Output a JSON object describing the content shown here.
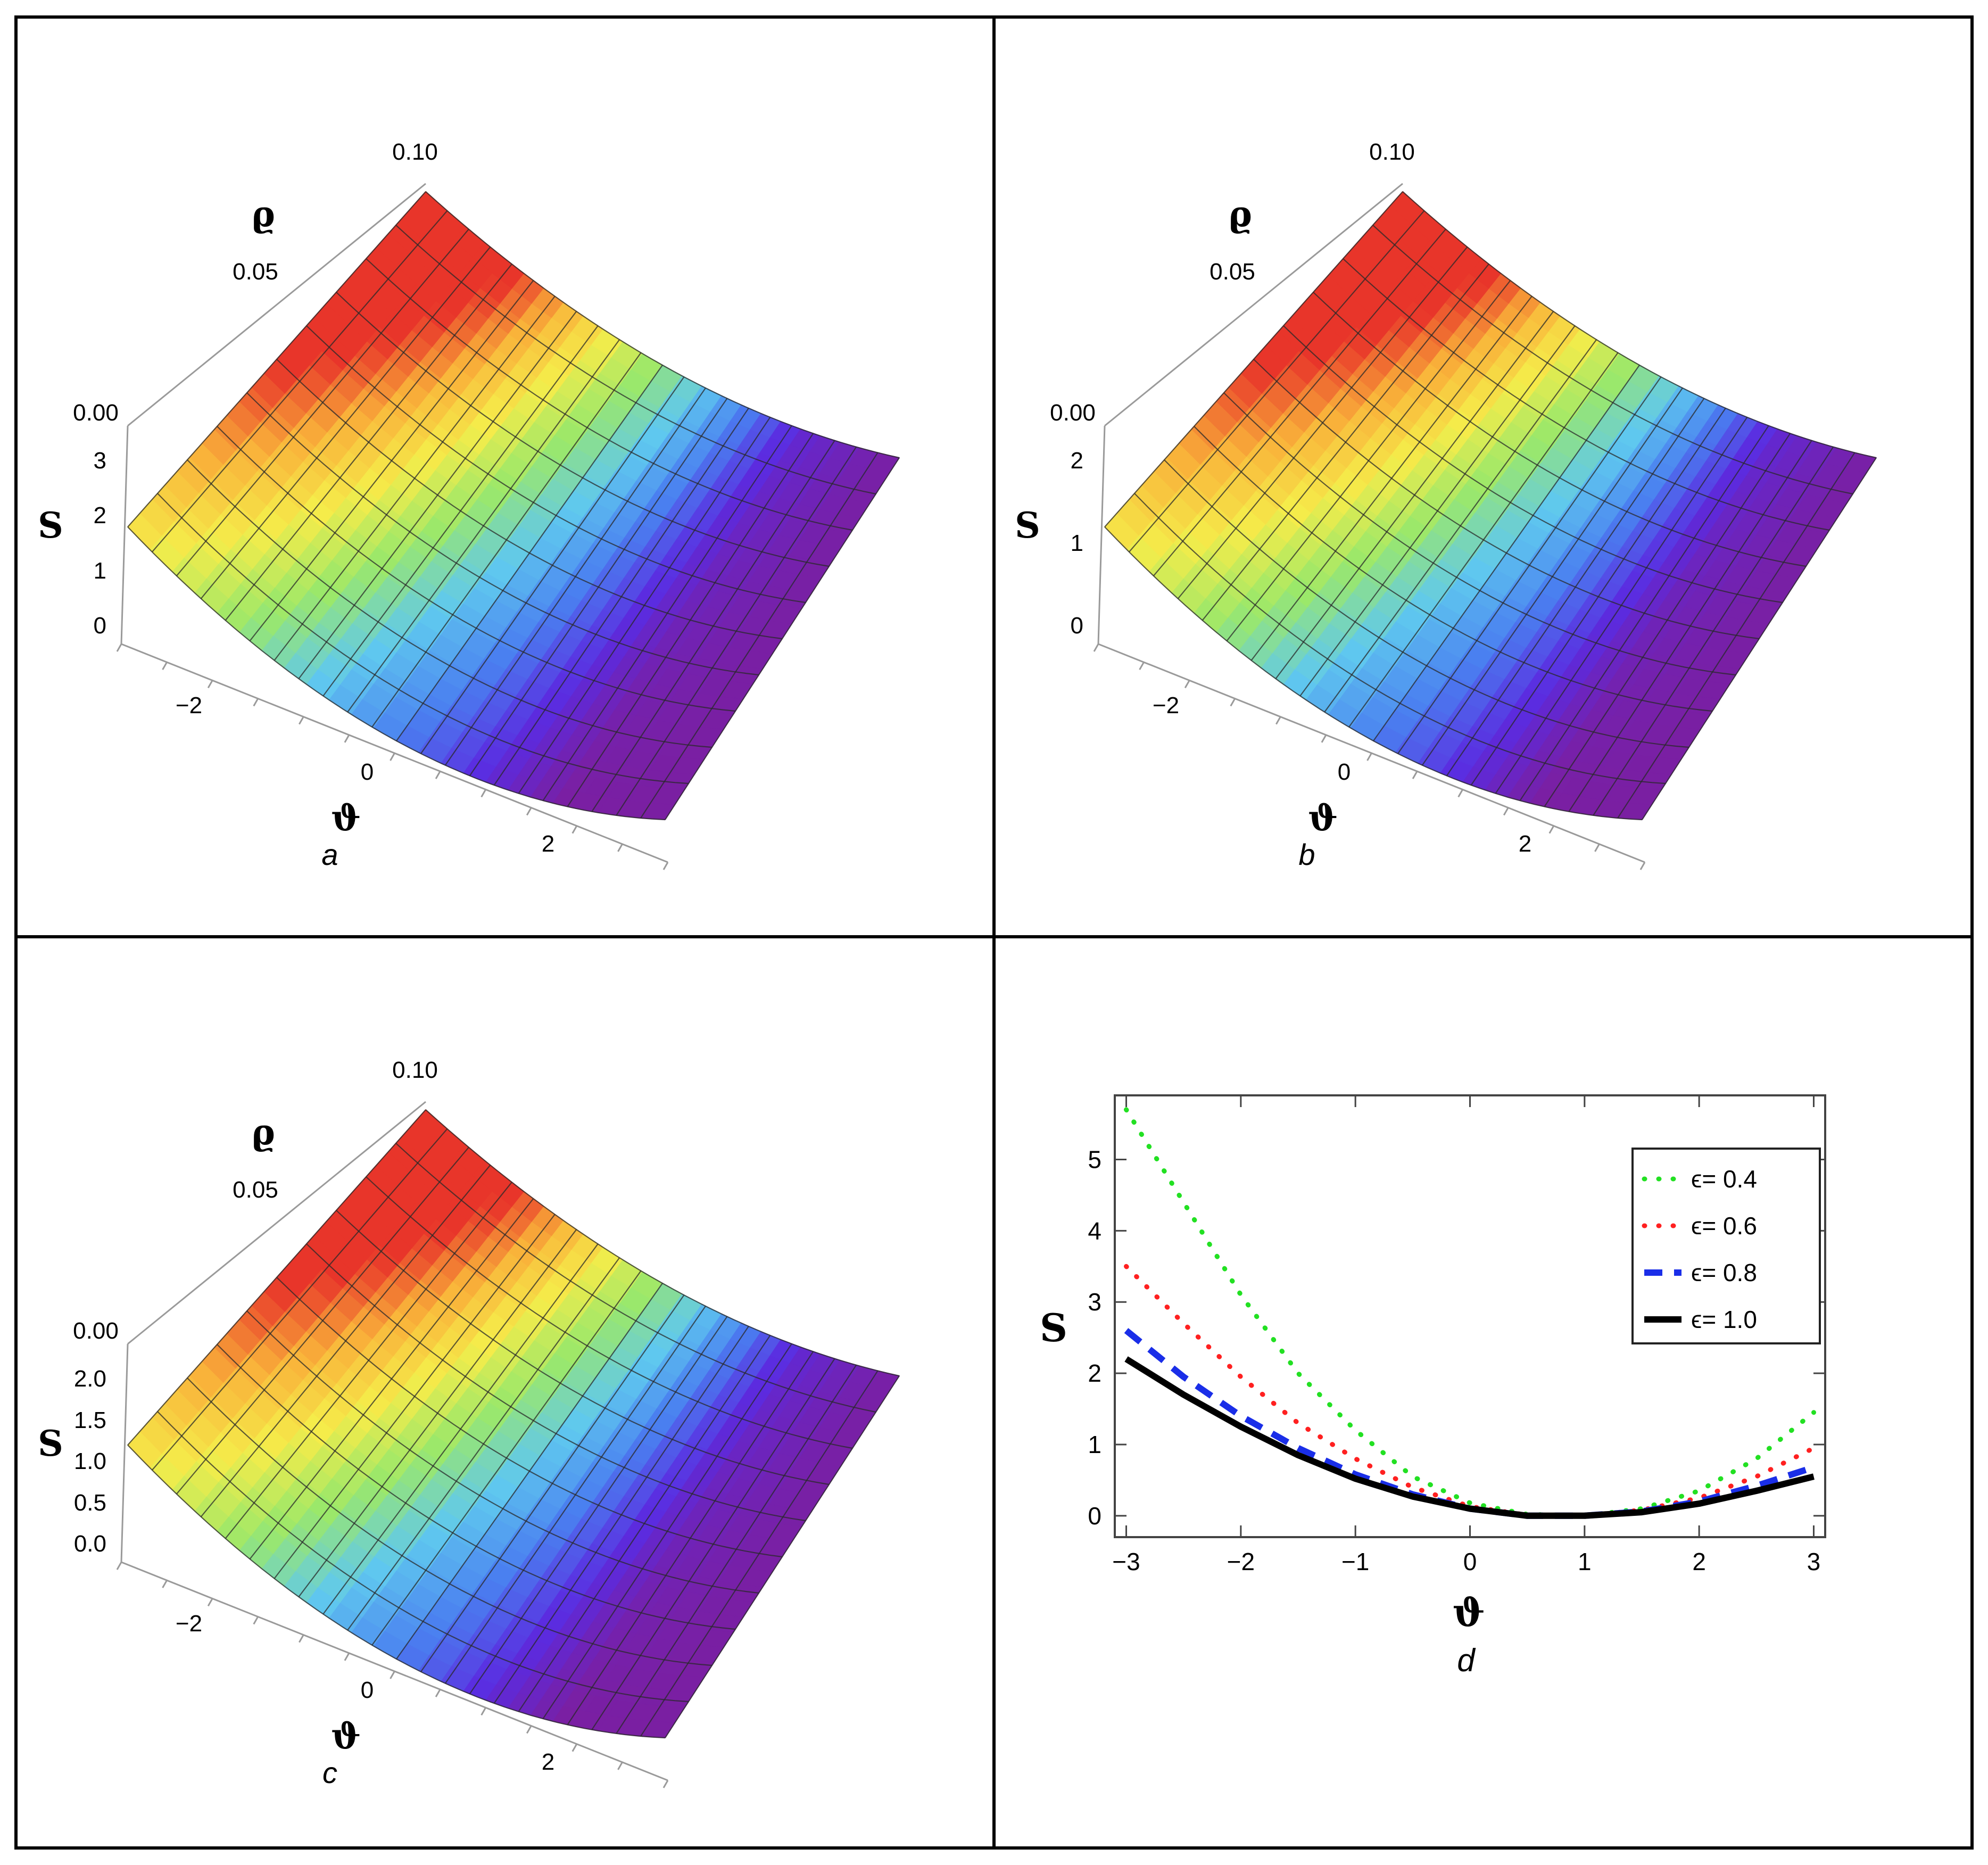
{
  "panels": [
    {
      "id": "a",
      "caption": "a",
      "z_label": "S",
      "x_label": "ϑ",
      "y_label": "ϱ",
      "z_ticks": [
        "0",
        "1",
        "2",
        "3"
      ],
      "x_ticks": [
        "−2",
        "0",
        "2"
      ],
      "y_ticks": [
        "0.00",
        "0.05",
        "0.10"
      ]
    },
    {
      "id": "b",
      "caption": "b",
      "z_label": "S",
      "x_label": "ϑ",
      "y_label": "ϱ",
      "z_ticks": [
        "0",
        "1",
        "2"
      ],
      "x_ticks": [
        "−2",
        "0",
        "2"
      ],
      "y_ticks": [
        "0.00",
        "0.05",
        "0.10"
      ]
    },
    {
      "id": "c",
      "caption": "c",
      "z_label": "S",
      "x_label": "ϑ",
      "y_label": "ϱ",
      "z_ticks": [
        "0.0",
        "0.5",
        "1.0",
        "1.5",
        "2.0"
      ],
      "x_ticks": [
        "−2",
        "0",
        "2"
      ],
      "y_ticks": [
        "0.00",
        "0.05",
        "0.10"
      ]
    }
  ],
  "panel_d": {
    "caption": "d",
    "xlabel": "ϑ",
    "ylabel": "S",
    "x_ticks": [
      "−3",
      "−2",
      "−1",
      "0",
      "1",
      "2",
      "3"
    ],
    "y_ticks": [
      "0",
      "1",
      "2",
      "3",
      "4",
      "5"
    ]
  },
  "chart_data": [
    {
      "type": "surface",
      "panel": "a",
      "x_range": [
        -3,
        3
      ],
      "y_range": [
        0,
        0.1
      ],
      "z_range": [
        0,
        3.2
      ],
      "colormap": [
        "#7a1fa2",
        "#5b2be0",
        "#4a7ff0",
        "#5fc8ef",
        "#9be86a",
        "#f5ec4a",
        "#f9b23a",
        "#e8352a"
      ]
    },
    {
      "type": "surface",
      "panel": "b",
      "x_range": [
        -3,
        3
      ],
      "y_range": [
        0,
        0.1
      ],
      "z_range": [
        0,
        2.5
      ],
      "colormap": [
        "#7a1fa2",
        "#5b2be0",
        "#4a7ff0",
        "#5fc8ef",
        "#9be86a",
        "#f5ec4a",
        "#f9b23a",
        "#e8352a"
      ]
    },
    {
      "type": "surface",
      "panel": "c",
      "x_range": [
        -3,
        3
      ],
      "y_range": [
        0,
        0.1
      ],
      "z_range": [
        0,
        2.1
      ],
      "colormap": [
        "#7a1fa2",
        "#5b2be0",
        "#4a7ff0",
        "#5fc8ef",
        "#9be86a",
        "#f5ec4a",
        "#f9b23a",
        "#e8352a"
      ]
    },
    {
      "type": "line",
      "panel": "d",
      "xlabel": "ϑ",
      "ylabel": "S",
      "xlim": [
        -3.1,
        3.1
      ],
      "ylim": [
        -0.3,
        5.9
      ],
      "legend_position": "top-right",
      "x": [
        -3.0,
        -2.5,
        -2.0,
        -1.5,
        -1.0,
        -0.5,
        0.0,
        0.5,
        1.0,
        1.5,
        2.0,
        2.5,
        3.0
      ],
      "series": [
        {
          "name": "ϵ= 0.4",
          "style": "dotted",
          "color": "#22e022",
          "values": [
            5.7,
            4.4,
            3.1,
            2.0,
            1.2,
            0.55,
            0.18,
            0.02,
            0.0,
            0.1,
            0.35,
            0.8,
            1.45
          ]
        },
        {
          "name": "ϵ= 0.6",
          "style": "dotted",
          "color": "#ff2020",
          "values": [
            3.5,
            2.7,
            1.95,
            1.3,
            0.8,
            0.4,
            0.13,
            0.01,
            0.0,
            0.08,
            0.25,
            0.55,
            0.95
          ]
        },
        {
          "name": "ϵ= 0.8",
          "style": "dashed",
          "color": "#1a2ee8",
          "values": [
            2.6,
            1.95,
            1.4,
            0.95,
            0.58,
            0.3,
            0.1,
            0.0,
            0.0,
            0.06,
            0.2,
            0.42,
            0.68
          ]
        },
        {
          "name": "ϵ= 1.0",
          "style": "solid",
          "color": "#000000",
          "values": [
            2.2,
            1.7,
            1.25,
            0.85,
            0.52,
            0.27,
            0.1,
            0.0,
            0.0,
            0.05,
            0.17,
            0.35,
            0.55
          ]
        }
      ]
    }
  ]
}
